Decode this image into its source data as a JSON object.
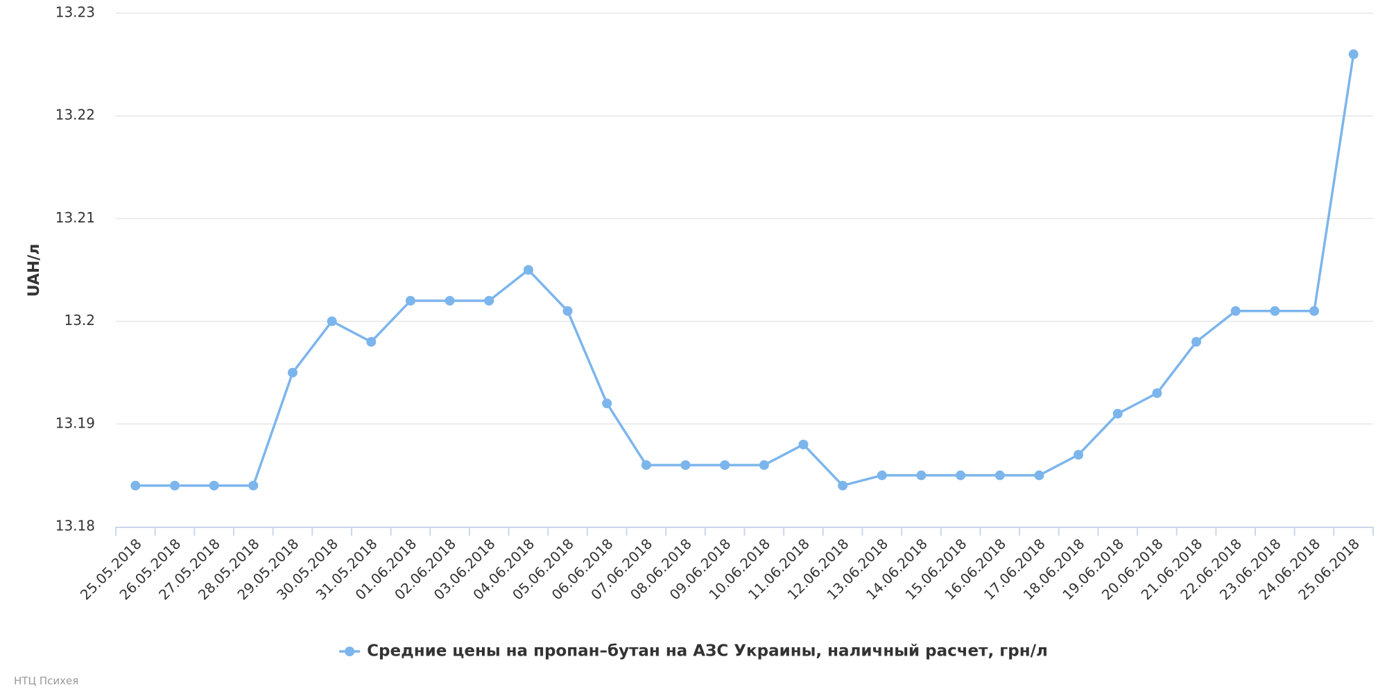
{
  "chart_data": {
    "type": "line",
    "y_label": "UAH/л",
    "categories": [
      "25.05.2018",
      "26.05.2018",
      "27.05.2018",
      "28.05.2018",
      "29.05.2018",
      "30.05.2018",
      "31.05.2018",
      "01.06.2018",
      "02.06.2018",
      "03.06.2018",
      "04.06.2018",
      "05.06.2018",
      "06.06.2018",
      "07.06.2018",
      "08.06.2018",
      "09.06.2018",
      "10.06.2018",
      "11.06.2018",
      "12.06.2018",
      "13.06.2018",
      "14.06.2018",
      "15.06.2018",
      "16.06.2018",
      "17.06.2018",
      "18.06.2018",
      "19.06.2018",
      "20.06.2018",
      "21.06.2018",
      "22.06.2018",
      "23.06.2018",
      "24.06.2018",
      "25.06.2018"
    ],
    "series": [
      {
        "name": "Средние цены на пропан–бутан на АЗС Украины, наличный расчет, грн/л",
        "color": "#7cb5ec",
        "values": [
          13.184,
          13.184,
          13.184,
          13.184,
          13.195,
          13.2,
          13.198,
          13.202,
          13.202,
          13.202,
          13.205,
          13.201,
          13.192,
          13.186,
          13.186,
          13.186,
          13.186,
          13.188,
          13.184,
          13.185,
          13.185,
          13.185,
          13.185,
          13.185,
          13.187,
          13.191,
          13.193,
          13.198,
          13.201,
          13.201,
          13.201,
          13.226
        ]
      }
    ],
    "ylim": [
      13.18,
      13.23
    ],
    "yticks": [
      13.18,
      13.19,
      13.2,
      13.21,
      13.22,
      13.23
    ],
    "grid": true,
    "legend": "bottom",
    "credits": "НТЦ Психея"
  }
}
